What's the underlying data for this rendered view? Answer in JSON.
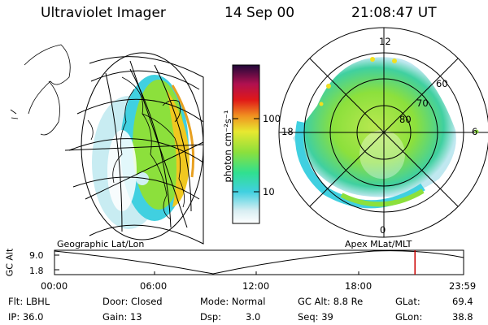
{
  "header": {
    "instrument": "Ultraviolet Imager",
    "date": "14 Sep 00",
    "time": "21:08:47 UT"
  },
  "colorbar": {
    "unit_label": "photon cm⁻²s⁻¹",
    "ticks": [
      "100",
      "10"
    ]
  },
  "polar_plot": {
    "mlt_labels": [
      "12",
      "18",
      "6",
      "0"
    ],
    "lat_labels": [
      "60",
      "70",
      "80"
    ]
  },
  "projection_labels": {
    "left": "Geographic Lat/Lon",
    "right": "Apex MLat/MLT"
  },
  "timeline": {
    "ylabel": "GC Alt",
    "y_ticks": [
      "9.0",
      "1.8"
    ],
    "x_ticks": [
      "00:00",
      "06:00",
      "12:00",
      "18:00",
      "23:59"
    ],
    "marker_time": "21:08"
  },
  "info": {
    "flt": "Flt: LBHL",
    "ip": "IP: 36.0",
    "door": "Door: Closed",
    "gain": "Gain: 13",
    "mode": "Mode: Normal",
    "dsp_label": "Dsp:",
    "dsp_value": "3.0",
    "gc_alt": "GC Alt: 8.8 Re",
    "seq": "Seq: 39",
    "glat_label": "GLat:",
    "glat_value": "69.4",
    "glon_label": "GLon:",
    "glon_value": "38.8"
  },
  "colors": {
    "marker": "#cc0000",
    "aurora_low": "#40d0e0",
    "aurora_mid": "#8ce03c",
    "aurora_high": "#f0c820"
  }
}
